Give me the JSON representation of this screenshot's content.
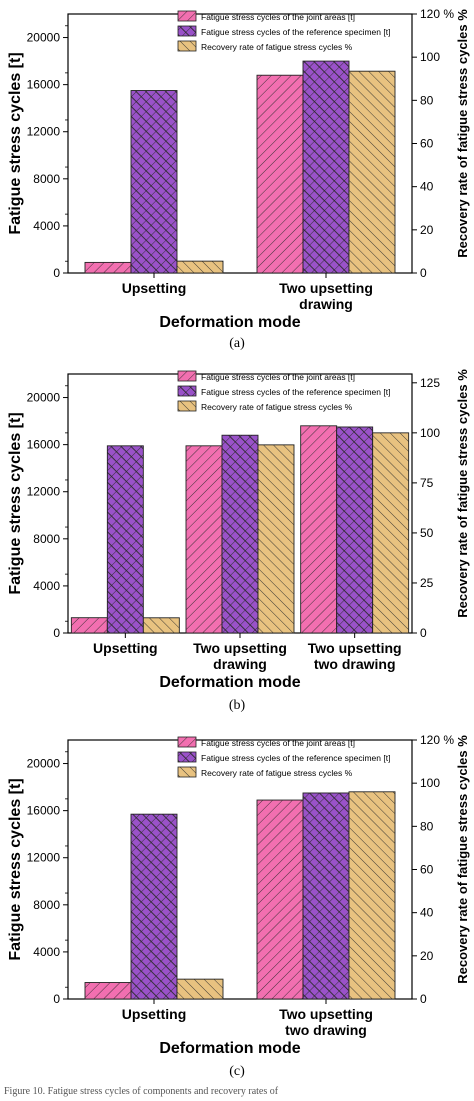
{
  "chart_data": [
    {
      "panel": "(a)",
      "type": "bar",
      "categories": [
        "Upsetting",
        "Two upsetting\ndrawing"
      ],
      "xlabel": "Deformation mode",
      "ylabel_left": "Fatigue stress cycles [t]",
      "ylabel_right": "Recovery rate of fatigue stress cycles %",
      "ylim_left": [
        0,
        22000
      ],
      "yticks_left": [
        0,
        4000,
        8000,
        12000,
        16000,
        20000
      ],
      "ylim_right": [
        0,
        120
      ],
      "yticks_right": [
        0,
        20,
        40,
        60,
        80,
        100,
        120
      ],
      "right_tick_suffix_top": " %",
      "legend_position": "top-right",
      "series": [
        {
          "name": "Fatigue stress cycles of the joint areas [t]",
          "axis": "left",
          "color": "#f26fb0",
          "values": [
            900,
            16800
          ]
        },
        {
          "name": "Fatigue stress cycles of the reference specimen [t]",
          "axis": "left",
          "color": "#9a52c9",
          "values": [
            15500,
            18000
          ]
        },
        {
          "name": "Recovery rate of fatigue stress cycles %",
          "axis": "right",
          "color": "#e8c280",
          "values": [
            5.5,
            93.5
          ]
        }
      ]
    },
    {
      "panel": "(b)",
      "type": "bar",
      "categories": [
        "Upsetting",
        "Two upsetting\ndrawing",
        "Two upsetting\ntwo drawing"
      ],
      "xlabel": "Deformation mode",
      "ylabel_left": "Fatigue stress cycles [t]",
      "ylabel_right": "Recovery rate of fatigue stress cycles %",
      "ylim_left": [
        0,
        22000
      ],
      "yticks_left": [
        0,
        4000,
        8000,
        12000,
        16000,
        20000
      ],
      "ylim_right": [
        0,
        129.4
      ],
      "yticks_right": [
        0,
        25,
        50,
        75,
        100,
        125
      ],
      "right_tick_suffix_top": "",
      "legend_position": "top-right",
      "series": [
        {
          "name": "Fatigue stress cycles of the joint areas [t]",
          "axis": "left",
          "color": "#f26fb0",
          "values": [
            1300,
            15900,
            17600
          ]
        },
        {
          "name": "Fatigue stress cycles of the reference specimen [t]",
          "axis": "left",
          "color": "#9a52c9",
          "values": [
            15900,
            16800,
            17500
          ]
        },
        {
          "name": "Recovery rate of fatigue stress cycles %",
          "axis": "right",
          "color": "#e8c280",
          "values": [
            7.6,
            94.0,
            100.0
          ]
        }
      ]
    },
    {
      "panel": "(c)",
      "type": "bar",
      "categories": [
        "Upsetting",
        "Two upsetting\ntwo drawing"
      ],
      "xlabel": "Deformation mode",
      "ylabel_left": "Fatigue stress cycles [t]",
      "ylabel_right": "Recovery rate of fatigue stress cycles %",
      "ylim_left": [
        0,
        22000
      ],
      "yticks_left": [
        0,
        4000,
        8000,
        12000,
        16000,
        20000
      ],
      "ylim_right": [
        0,
        120
      ],
      "yticks_right": [
        0,
        20,
        40,
        60,
        80,
        100,
        120
      ],
      "right_tick_suffix_top": " %",
      "legend_position": "top-right",
      "series": [
        {
          "name": "Fatigue stress cycles of the joint areas [t]",
          "axis": "left",
          "color": "#f26fb0",
          "values": [
            1400,
            16900
          ]
        },
        {
          "name": "Fatigue stress cycles of the reference specimen [t]",
          "axis": "left",
          "color": "#9a52c9",
          "values": [
            15700,
            17500
          ]
        },
        {
          "name": "Recovery rate of fatigue stress cycles %",
          "axis": "right",
          "color": "#e8c280",
          "values": [
            9.2,
            96.0
          ]
        }
      ]
    }
  ],
  "caption": "Figure 10. Fatigue stress cycles of components and recovery rates of"
}
